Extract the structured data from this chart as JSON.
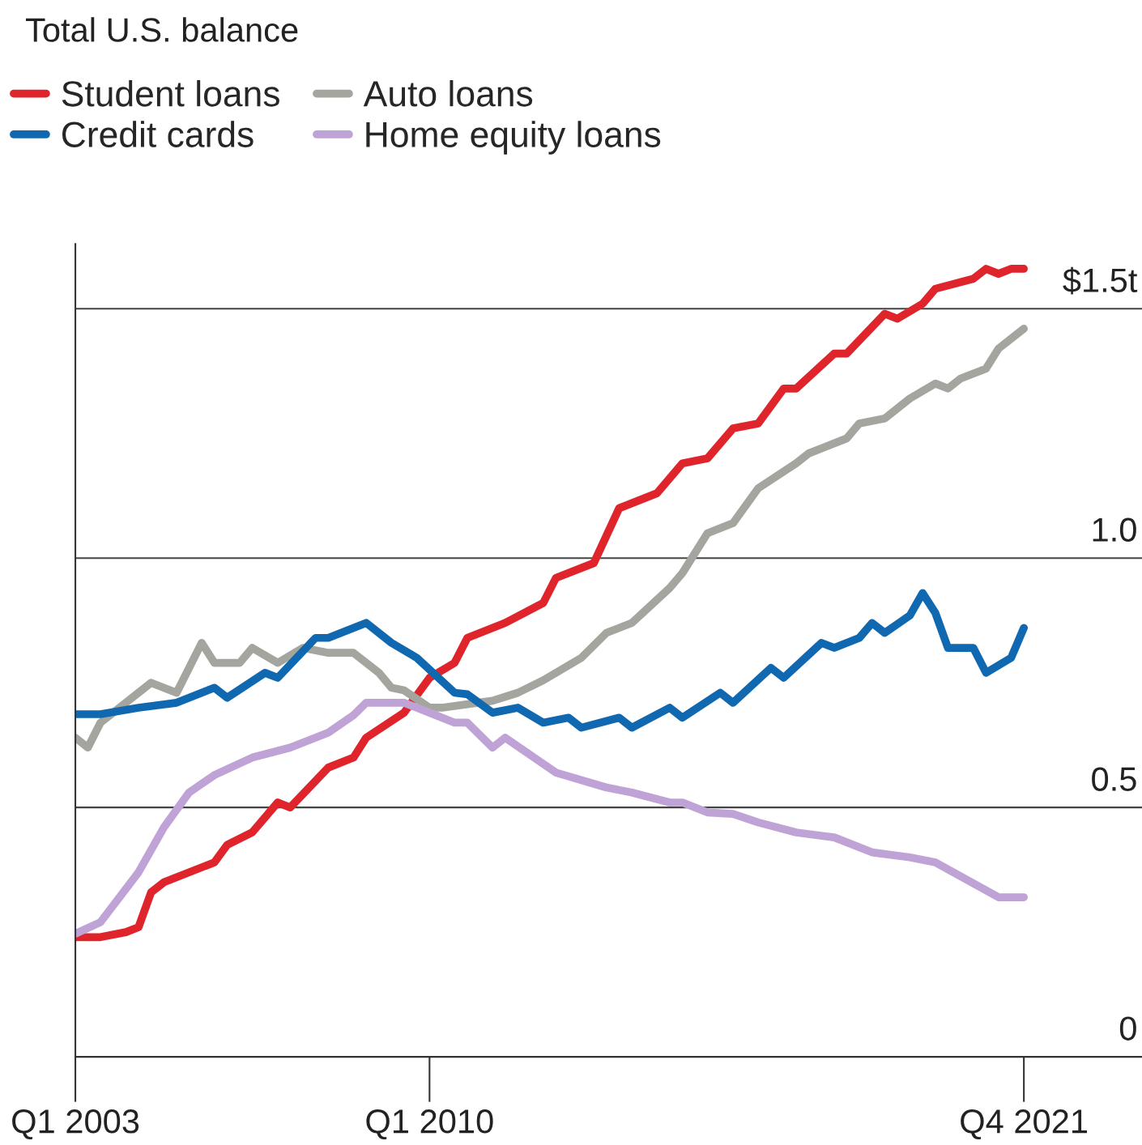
{
  "chart_data": {
    "type": "line",
    "title": "Total U.S. balance",
    "xlim": [
      "2003-01",
      "2024-02"
    ],
    "xticks": [
      {
        "value": "2003-01",
        "label": "Q1 2003"
      },
      {
        "value": "2010-01",
        "label": "Q1 2010"
      },
      {
        "value": "2021-10",
        "label": "Q4 2021"
      }
    ],
    "ylim": [
      0,
      1.63
    ],
    "yticks": [
      0,
      0.5,
      {
        "value": 1.0,
        "label": "1.0"
      },
      {
        "value": 1.5,
        "label": "$1.5t"
      }
    ],
    "grid": "y",
    "legend": "top left",
    "line_style": "solid",
    "series": [
      {
        "name": "Student loans",
        "color": "#e0242b",
        "x": [
          "2003-01",
          "2003-07",
          "2004-01",
          "2004-04",
          "2004-07",
          "2004-10",
          "2005-10",
          "2006-01",
          "2006-07",
          "2007-01",
          "2007-04",
          "2008-01",
          "2008-07",
          "2008-10",
          "2009-07",
          "2010-01",
          "2010-07",
          "2010-10",
          "2011-07",
          "2012-04",
          "2012-07",
          "2013-04",
          "2013-10",
          "2014-07",
          "2015-01",
          "2015-07",
          "2016-01",
          "2016-07",
          "2017-01",
          "2017-04",
          "2018-01",
          "2018-04",
          "2019-01",
          "2019-04",
          "2019-10",
          "2020-01",
          "2020-10",
          "2021-01",
          "2021-04",
          "2021-07",
          "2021-10"
        ],
        "values": [
          0.24,
          0.24,
          0.25,
          0.26,
          0.33,
          0.35,
          0.39,
          0.425,
          0.45,
          0.51,
          0.5,
          0.58,
          0.6,
          0.64,
          0.69,
          0.76,
          0.79,
          0.84,
          0.87,
          0.91,
          0.96,
          0.99,
          1.1,
          1.13,
          1.19,
          1.2,
          1.26,
          1.27,
          1.34,
          1.34,
          1.41,
          1.41,
          1.49,
          1.48,
          1.51,
          1.54,
          1.56,
          1.58,
          1.57,
          1.58,
          1.58
        ]
      },
      {
        "name": "Auto loans",
        "color": "#a3a59e",
        "x": [
          "2003-01",
          "2003-04",
          "2003-07",
          "2004-07",
          "2005-01",
          "2005-07",
          "2005-10",
          "2006-04",
          "2006-07",
          "2007-01",
          "2007-07",
          "2008-01",
          "2008-07",
          "2009-01",
          "2009-04",
          "2009-07",
          "2010-01",
          "2010-04",
          "2011-04",
          "2011-10",
          "2012-04",
          "2013-01",
          "2013-07",
          "2014-01",
          "2014-10",
          "2015-01",
          "2015-07",
          "2016-01",
          "2016-07",
          "2017-04",
          "2017-07",
          "2018-04",
          "2018-07",
          "2019-01",
          "2019-07",
          "2020-01",
          "2020-04",
          "2020-07",
          "2021-01",
          "2021-04",
          "2021-10"
        ],
        "values": [
          0.64,
          0.62,
          0.67,
          0.75,
          0.73,
          0.83,
          0.79,
          0.79,
          0.82,
          0.79,
          0.82,
          0.81,
          0.81,
          0.77,
          0.74,
          0.735,
          0.7,
          0.7,
          0.714,
          0.73,
          0.755,
          0.8,
          0.85,
          0.87,
          0.94,
          0.97,
          1.05,
          1.07,
          1.14,
          1.19,
          1.21,
          1.24,
          1.27,
          1.28,
          1.32,
          1.35,
          1.34,
          1.36,
          1.38,
          1.42,
          1.46
        ]
      },
      {
        "name": "Credit cards",
        "color": "#1068b0",
        "x": [
          "2003-01",
          "2003-07",
          "2004-04",
          "2005-01",
          "2005-10",
          "2006-01",
          "2006-10",
          "2007-01",
          "2007-10",
          "2008-01",
          "2008-10",
          "2009-04",
          "2009-10",
          "2010-07",
          "2010-10",
          "2011-04",
          "2011-10",
          "2012-04",
          "2012-10",
          "2013-01",
          "2013-10",
          "2014-01",
          "2014-10",
          "2015-01",
          "2015-10",
          "2016-01",
          "2016-10",
          "2017-01",
          "2017-10",
          "2018-01",
          "2018-07",
          "2018-10",
          "2019-01",
          "2019-07",
          "2019-10",
          "2020-01",
          "2020-04",
          "2020-10",
          "2021-01",
          "2021-07",
          "2021-10"
        ],
        "values": [
          0.687,
          0.687,
          0.7,
          0.71,
          0.74,
          0.72,
          0.77,
          0.76,
          0.84,
          0.84,
          0.87,
          0.83,
          0.8,
          0.73,
          0.727,
          0.69,
          0.7,
          0.67,
          0.68,
          0.66,
          0.68,
          0.66,
          0.7,
          0.68,
          0.73,
          0.71,
          0.78,
          0.76,
          0.83,
          0.82,
          0.84,
          0.87,
          0.85,
          0.885,
          0.93,
          0.89,
          0.82,
          0.82,
          0.77,
          0.8,
          0.86
        ]
      },
      {
        "name": "Home equity loans",
        "color": "#c0a3d6",
        "x": [
          "2003-01",
          "2003-07",
          "2004-04",
          "2004-10",
          "2005-04",
          "2005-10",
          "2006-07",
          "2007-04",
          "2008-01",
          "2008-07",
          "2008-10",
          "2009-07",
          "2010-01",
          "2010-07",
          "2010-10",
          "2011-04",
          "2011-07",
          "2012-07",
          "2013-07",
          "2014-01",
          "2014-10",
          "2015-01",
          "2015-07",
          "2016-01",
          "2016-07",
          "2017-04",
          "2018-01",
          "2018-10",
          "2019-07",
          "2020-01",
          "2021-04",
          "2021-10"
        ],
        "values": [
          0.247,
          0.27,
          0.37,
          0.46,
          0.53,
          0.565,
          0.6,
          0.62,
          0.65,
          0.685,
          0.71,
          0.71,
          0.69,
          0.67,
          0.67,
          0.62,
          0.64,
          0.57,
          0.54,
          0.53,
          0.51,
          0.51,
          0.49,
          0.487,
          0.47,
          0.45,
          0.44,
          0.41,
          0.4,
          0.39,
          0.32,
          0.32
        ]
      }
    ]
  }
}
